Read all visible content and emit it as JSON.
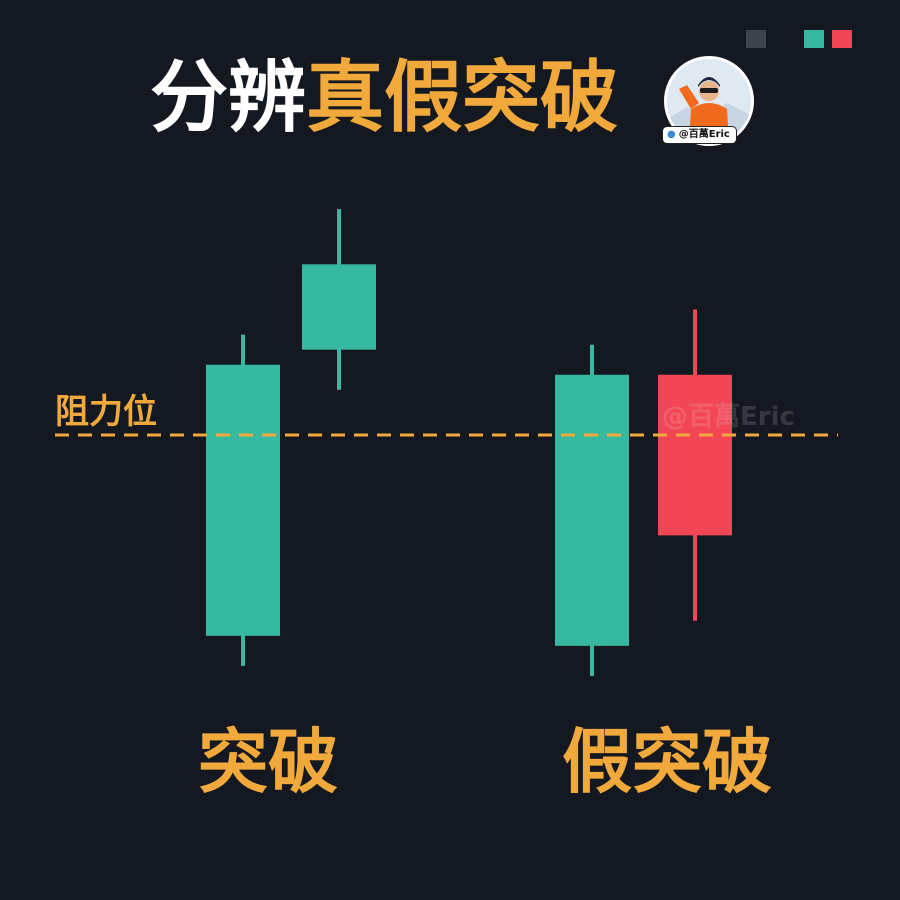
{
  "header": {
    "title_white": "分辨",
    "title_orange": "真假突破",
    "avatar_handle": "@百萬Eric"
  },
  "watermark": "@百萬Eric",
  "colors": {
    "background": "#141821",
    "bullish": "#37b9a1",
    "bearish": "#f24656",
    "accent": "#f2a93b",
    "title_text": "#ffffff",
    "swatch_gray": "#3e424c"
  },
  "swatches": [
    "#3e424c",
    "#37b9a1",
    "#f24656"
  ],
  "chart_data": {
    "type": "candlestick",
    "title": "分辨真假突破",
    "ylim": [
      0,
      100
    ],
    "resistance": {
      "label": "阻力位",
      "value": 50,
      "style": "dashed"
    },
    "groups": [
      {
        "label": "突破",
        "candles": [
          {
            "open": 10,
            "close": 64,
            "high": 70,
            "low": 4,
            "direction": "up"
          },
          {
            "open": 67,
            "close": 84,
            "high": 95,
            "low": 59,
            "direction": "up"
          }
        ]
      },
      {
        "label": "假突破",
        "candles": [
          {
            "open": 8,
            "close": 62,
            "high": 68,
            "low": 2,
            "direction": "up"
          },
          {
            "open": 62,
            "close": 30,
            "high": 75,
            "low": 13,
            "direction": "down"
          }
        ]
      }
    ]
  }
}
